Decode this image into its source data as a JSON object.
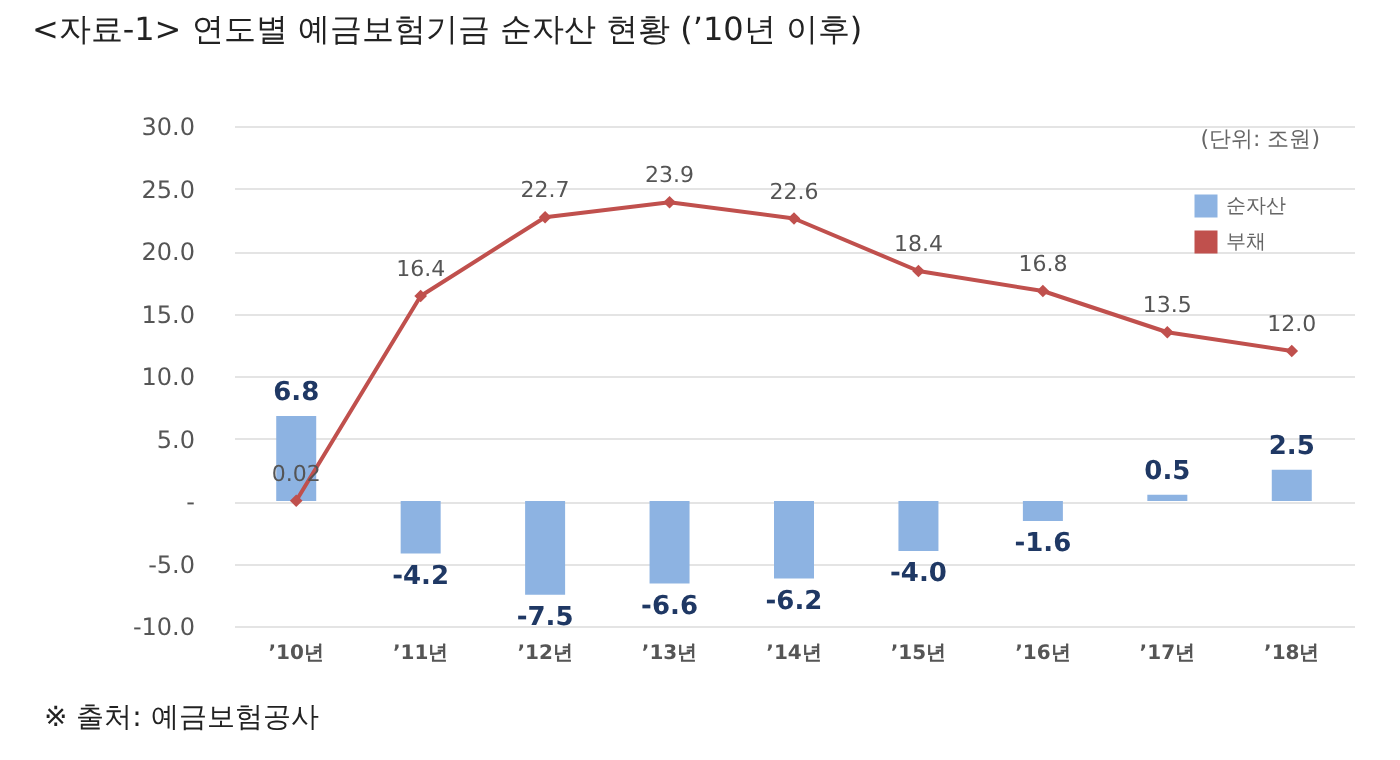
{
  "chart_data": {
    "type": "bar",
    "title": "<자료-1> 연도별 예금보험기금 순자산 현황 (’10년 이후)",
    "categories": [
      "’10년",
      "’11년",
      "’12년",
      "’13년",
      "’14년",
      "’15년",
      "’16년",
      "’17년",
      "’18년"
    ],
    "series": [
      {
        "name": "순자산",
        "color": "#8db3e2",
        "values": [
          6.8,
          -4.2,
          -7.5,
          -6.6,
          -6.2,
          -4.0,
          -1.6,
          0.5,
          2.5
        ],
        "value_labels": [
          "6.8",
          "-4.2",
          "-7.5",
          "-6.6",
          "-6.2",
          "-4.0",
          "-1.6",
          "0.5",
          "2.5"
        ]
      },
      {
        "name": "부채",
        "type": "line",
        "color": "#c0504d",
        "values": [
          0.02,
          16.4,
          22.7,
          23.9,
          22.6,
          18.4,
          16.8,
          13.5,
          12.0
        ],
        "value_labels": [
          "0.02",
          "16.4",
          "22.7",
          "23.9",
          "22.6",
          "18.4",
          "16.8",
          "13.5",
          "12.0"
        ]
      }
    ],
    "ylim": [
      -10,
      30
    ],
    "yticks": [
      {
        "value": -10,
        "label": "-10.0"
      },
      {
        "value": -5,
        "label": "-5.0"
      },
      {
        "value": 0,
        "label": "-"
      },
      {
        "value": 5,
        "label": "5.0"
      },
      {
        "value": 10,
        "label": "10.0"
      },
      {
        "value": 15,
        "label": "15.0"
      },
      {
        "value": 20,
        "label": "20.0"
      },
      {
        "value": 25,
        "label": "25.0"
      },
      {
        "value": 30,
        "label": "30.0"
      }
    ],
    "grid": "y",
    "legend": "top right",
    "marker": "diamond",
    "line_style": "solid",
    "annotations": [
      "(단위: 조원)",
      "※ 출처: 예금보험공사"
    ]
  }
}
